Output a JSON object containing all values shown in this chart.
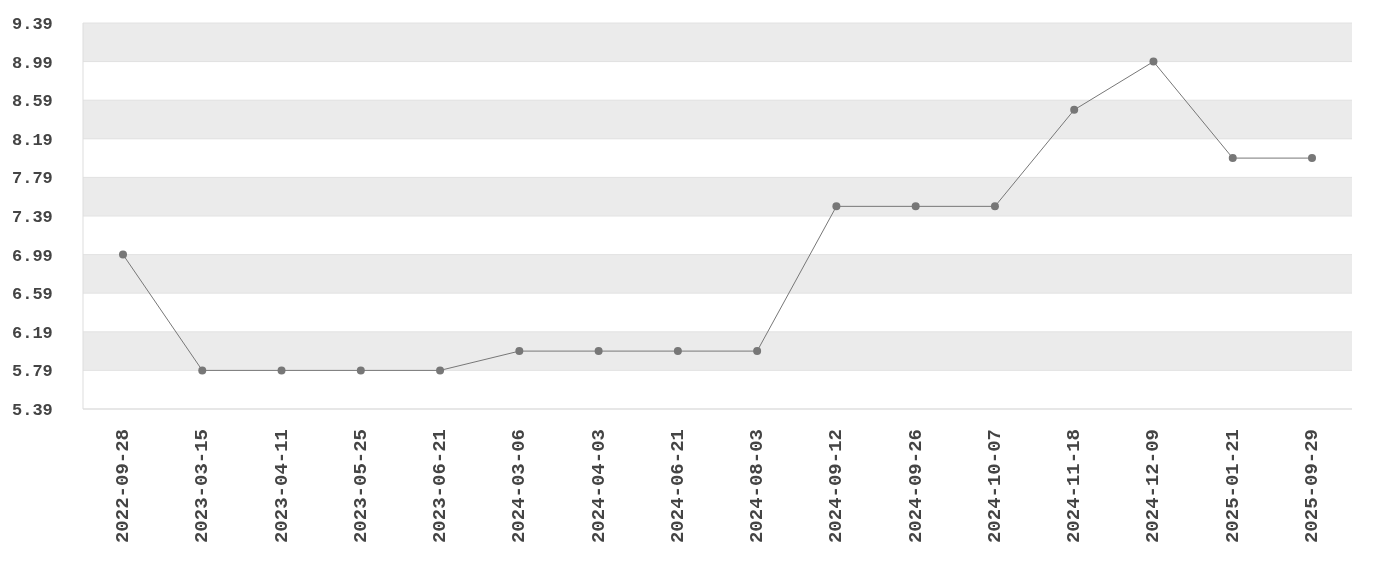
{
  "chart_data": {
    "type": "line",
    "categories": [
      "2022-09-28",
      "2023-03-15",
      "2023-04-11",
      "2023-05-25",
      "2023-06-21",
      "2024-03-06",
      "2024-04-03",
      "2024-06-21",
      "2024-08-03",
      "2024-09-12",
      "2024-09-26",
      "2024-10-07",
      "2024-11-18",
      "2024-12-09",
      "2025-01-21",
      "2025-09-29"
    ],
    "series": [
      {
        "color": "#777777",
        "values": [
          6.99,
          5.79,
          5.79,
          5.79,
          5.79,
          5.99,
          5.99,
          5.99,
          5.99,
          7.49,
          7.49,
          7.49,
          8.49,
          8.99,
          7.99,
          7.99
        ]
      }
    ],
    "ylim": [
      5.39,
      9.39
    ],
    "yticks": [
      5.39,
      5.79,
      6.19,
      6.59,
      6.99,
      7.39,
      7.79,
      8.19,
      8.59,
      8.99,
      9.39
    ],
    "grid": "y",
    "marker": "circle",
    "line_style": "solid",
    "legend": false
  }
}
